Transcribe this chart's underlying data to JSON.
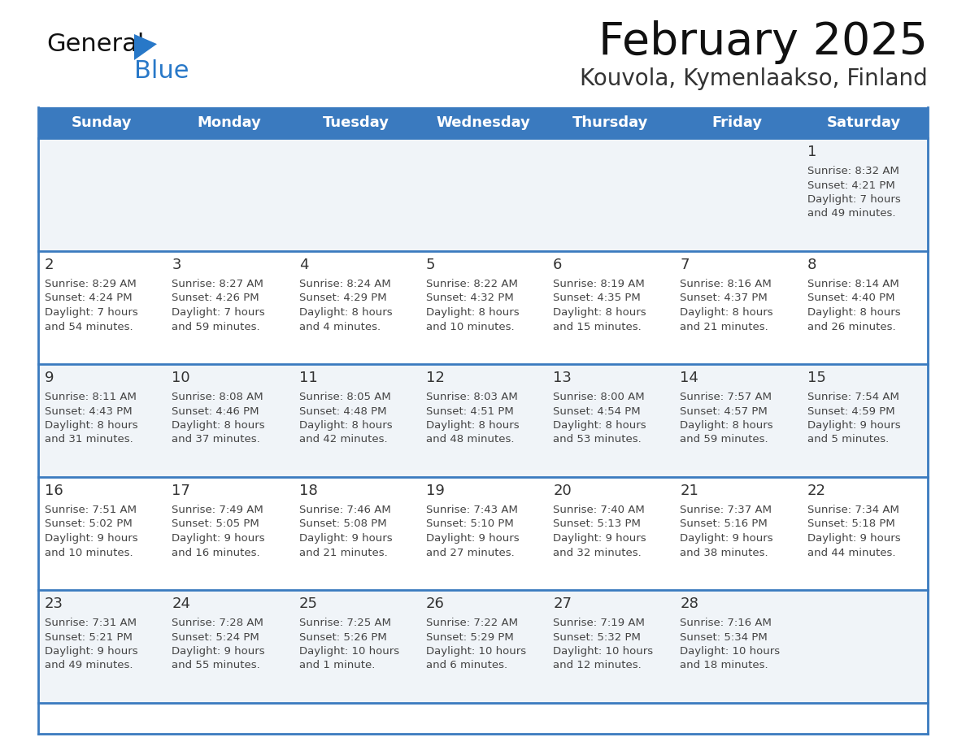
{
  "title": "February 2025",
  "subtitle": "Kouvola, Kymenlaakso, Finland",
  "header_color": "#3a7abf",
  "header_text_color": "#ffffff",
  "days_of_week": [
    "Sunday",
    "Monday",
    "Tuesday",
    "Wednesday",
    "Thursday",
    "Friday",
    "Saturday"
  ],
  "background_color": "#ffffff",
  "row_bg_light": "#f0f4f8",
  "row_bg_white": "#ffffff",
  "border_color": "#3a7abf",
  "day_num_color": "#333333",
  "info_text_color": "#444444",
  "logo_black": "#111111",
  "logo_blue": "#2878c8",
  "triangle_color": "#2878c8",
  "calendar_data": [
    [
      null,
      null,
      null,
      null,
      null,
      null,
      {
        "day": 1,
        "sunrise": "8:32 AM",
        "sunset": "4:21 PM",
        "daylight": "7 hours and 49 minutes."
      }
    ],
    [
      {
        "day": 2,
        "sunrise": "8:29 AM",
        "sunset": "4:24 PM",
        "daylight": "7 hours and 54 minutes."
      },
      {
        "day": 3,
        "sunrise": "8:27 AM",
        "sunset": "4:26 PM",
        "daylight": "7 hours and 59 minutes."
      },
      {
        "day": 4,
        "sunrise": "8:24 AM",
        "sunset": "4:29 PM",
        "daylight": "8 hours and 4 minutes."
      },
      {
        "day": 5,
        "sunrise": "8:22 AM",
        "sunset": "4:32 PM",
        "daylight": "8 hours and 10 minutes."
      },
      {
        "day": 6,
        "sunrise": "8:19 AM",
        "sunset": "4:35 PM",
        "daylight": "8 hours and 15 minutes."
      },
      {
        "day": 7,
        "sunrise": "8:16 AM",
        "sunset": "4:37 PM",
        "daylight": "8 hours and 21 minutes."
      },
      {
        "day": 8,
        "sunrise": "8:14 AM",
        "sunset": "4:40 PM",
        "daylight": "8 hours and 26 minutes."
      }
    ],
    [
      {
        "day": 9,
        "sunrise": "8:11 AM",
        "sunset": "4:43 PM",
        "daylight": "8 hours and 31 minutes."
      },
      {
        "day": 10,
        "sunrise": "8:08 AM",
        "sunset": "4:46 PM",
        "daylight": "8 hours and 37 minutes."
      },
      {
        "day": 11,
        "sunrise": "8:05 AM",
        "sunset": "4:48 PM",
        "daylight": "8 hours and 42 minutes."
      },
      {
        "day": 12,
        "sunrise": "8:03 AM",
        "sunset": "4:51 PM",
        "daylight": "8 hours and 48 minutes."
      },
      {
        "day": 13,
        "sunrise": "8:00 AM",
        "sunset": "4:54 PM",
        "daylight": "8 hours and 53 minutes."
      },
      {
        "day": 14,
        "sunrise": "7:57 AM",
        "sunset": "4:57 PM",
        "daylight": "8 hours and 59 minutes."
      },
      {
        "day": 15,
        "sunrise": "7:54 AM",
        "sunset": "4:59 PM",
        "daylight": "9 hours and 5 minutes."
      }
    ],
    [
      {
        "day": 16,
        "sunrise": "7:51 AM",
        "sunset": "5:02 PM",
        "daylight": "9 hours and 10 minutes."
      },
      {
        "day": 17,
        "sunrise": "7:49 AM",
        "sunset": "5:05 PM",
        "daylight": "9 hours and 16 minutes."
      },
      {
        "day": 18,
        "sunrise": "7:46 AM",
        "sunset": "5:08 PM",
        "daylight": "9 hours and 21 minutes."
      },
      {
        "day": 19,
        "sunrise": "7:43 AM",
        "sunset": "5:10 PM",
        "daylight": "9 hours and 27 minutes."
      },
      {
        "day": 20,
        "sunrise": "7:40 AM",
        "sunset": "5:13 PM",
        "daylight": "9 hours and 32 minutes."
      },
      {
        "day": 21,
        "sunrise": "7:37 AM",
        "sunset": "5:16 PM",
        "daylight": "9 hours and 38 minutes."
      },
      {
        "day": 22,
        "sunrise": "7:34 AM",
        "sunset": "5:18 PM",
        "daylight": "9 hours and 44 minutes."
      }
    ],
    [
      {
        "day": 23,
        "sunrise": "7:31 AM",
        "sunset": "5:21 PM",
        "daylight": "9 hours and 49 minutes."
      },
      {
        "day": 24,
        "sunrise": "7:28 AM",
        "sunset": "5:24 PM",
        "daylight": "9 hours and 55 minutes."
      },
      {
        "day": 25,
        "sunrise": "7:25 AM",
        "sunset": "5:26 PM",
        "daylight": "10 hours and 1 minute."
      },
      {
        "day": 26,
        "sunrise": "7:22 AM",
        "sunset": "5:29 PM",
        "daylight": "10 hours and 6 minutes."
      },
      {
        "day": 27,
        "sunrise": "7:19 AM",
        "sunset": "5:32 PM",
        "daylight": "10 hours and 12 minutes."
      },
      {
        "day": 28,
        "sunrise": "7:16 AM",
        "sunset": "5:34 PM",
        "daylight": "10 hours and 18 minutes."
      },
      null
    ]
  ]
}
